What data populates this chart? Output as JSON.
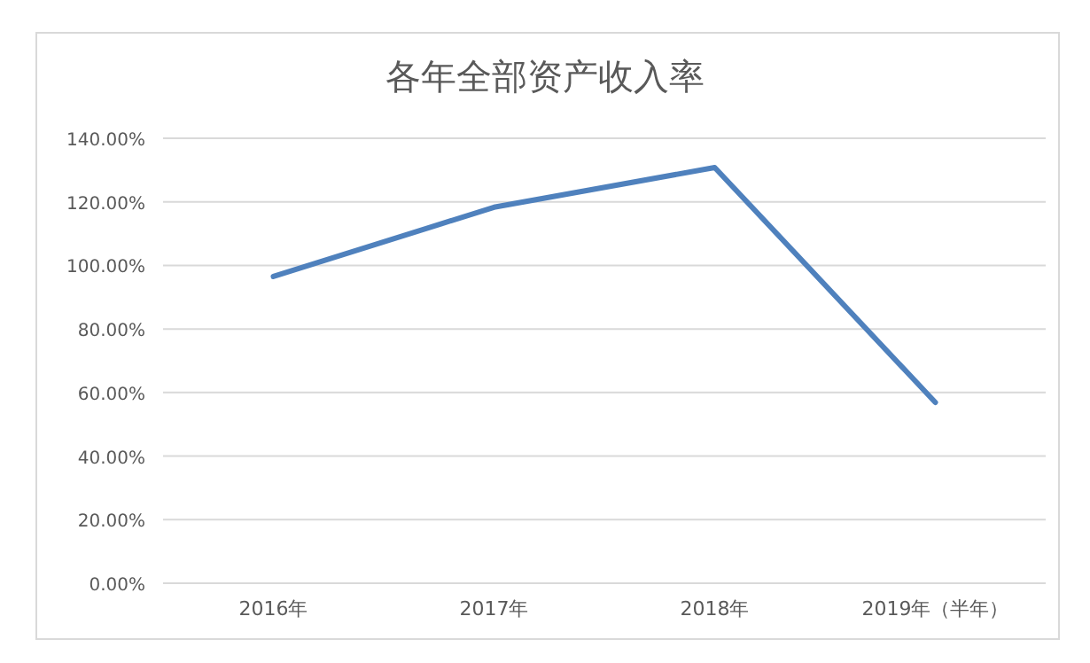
{
  "chart_data": {
    "type": "line",
    "title": "各年全部资产收入率",
    "categories": [
      "2016年",
      "2017年",
      "2018年",
      "2019年（半年）"
    ],
    "series": [
      {
        "color": "#4f81bd",
        "values": [
          96.5,
          118.3,
          130.8,
          56.9
        ]
      }
    ],
    "ylim": [
      0,
      140
    ],
    "yticks": [
      {
        "value": 0,
        "label": "0.00%"
      },
      {
        "value": 20,
        "label": "20.00%"
      },
      {
        "value": 40,
        "label": "40.00%"
      },
      {
        "value": 60,
        "label": "60.00%"
      },
      {
        "value": 80,
        "label": "80.00%"
      },
      {
        "value": 100,
        "label": "100.00%"
      },
      {
        "value": 120,
        "label": "120.00%"
      },
      {
        "value": 140,
        "label": "140.00%"
      }
    ],
    "grid": "y",
    "marker": "none",
    "line_style": "solid"
  }
}
